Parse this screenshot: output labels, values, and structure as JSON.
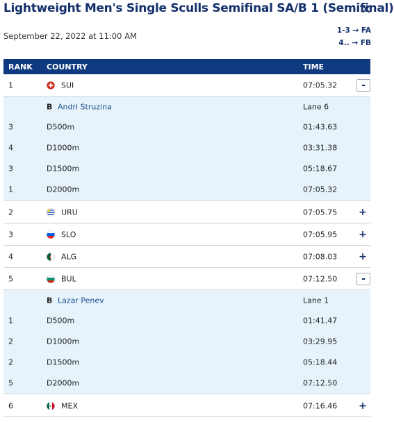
{
  "header": {
    "title": "Lightweight Men's Single Sculls Semifinal SA/B 1 (Semifinal)",
    "date": "September 22, 2022 at 11:00 AM",
    "progression": [
      "1-3 → FA",
      "4.. → FB"
    ]
  },
  "table": {
    "columns": [
      "RANK",
      "COUNTRY",
      "TIME"
    ],
    "rows": [
      {
        "rank": 1,
        "country": "SUI",
        "time": "07:05.32",
        "toggle": "-",
        "crew": {
          "boat": "B",
          "name": "Andri Struzina",
          "lane": "Lane 6"
        },
        "splits": [
          {
            "rank": 3,
            "distance": "D500m",
            "time": "01:43.63"
          },
          {
            "rank": 4,
            "distance": "D1000m",
            "time": "03:31.38"
          },
          {
            "rank": 3,
            "distance": "D1500m",
            "time": "05:18.67"
          },
          {
            "rank": 1,
            "distance": "D2000m",
            "time": "07:05.32"
          }
        ]
      },
      {
        "rank": 2,
        "country": "URU",
        "time": "07:05.75",
        "toggle": "+"
      },
      {
        "rank": 3,
        "country": "SLO",
        "time": "07:05.95",
        "toggle": "+"
      },
      {
        "rank": 4,
        "country": "ALG",
        "time": "07:08.03",
        "toggle": "+"
      },
      {
        "rank": 5,
        "country": "BUL",
        "time": "07:12.50",
        "toggle": "-",
        "crew": {
          "boat": "B",
          "name": "Lazar Penev",
          "lane": "Lane 1"
        },
        "splits": [
          {
            "rank": 1,
            "distance": "D500m",
            "time": "01:41.47"
          },
          {
            "rank": 2,
            "distance": "D1000m",
            "time": "03:29.95"
          },
          {
            "rank": 2,
            "distance": "D1500m",
            "time": "05:18.44"
          },
          {
            "rank": 5,
            "distance": "D2000m",
            "time": "07:12.50"
          }
        ]
      },
      {
        "rank": 6,
        "country": "MEX",
        "time": "07:16.46",
        "toggle": "+"
      }
    ]
  }
}
